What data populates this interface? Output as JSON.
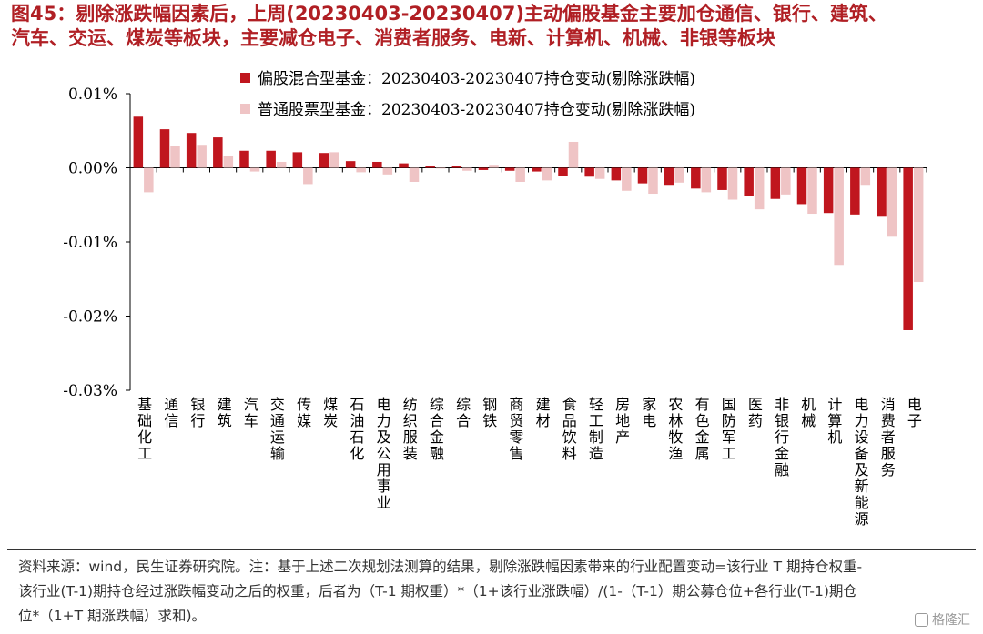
{
  "title": {
    "line1": "图45：剔除涨跌幅因素后，上周(20230403-20230407)主动偏股基金主要加仓通信、银行、建筑、",
    "line2": "汽车、交运、煤炭等板块，主要减仓电子、消费者服务、电新、计算机、机械、非银等板块"
  },
  "footer": {
    "line1": "资料来源：wind，民生证券研究院。注：基于上述二次规划法测算的结果，剔除涨跌幅因素带来的行业配置变动=该行业 T 期持仓权重-",
    "line2": "该行业(T-1)期持仓经过涨跌幅变动之后的权重，后者为（T-1 期权重）*（1+该行业涨跌幅）/(1-（T-1）期公募仓位+各行业(T-1)期仓",
    "line3": "位*（1+T 期涨跌幅）求和)。"
  },
  "watermark": {
    "text": "格隆汇",
    "icon": "glh-logo-icon"
  },
  "chart_data": {
    "type": "bar",
    "title": "",
    "xlabel": "",
    "ylabel": "",
    "ylim": [
      -0.03,
      0.01
    ],
    "yticks": [
      0.01,
      0.0,
      -0.01,
      -0.02,
      -0.03
    ],
    "ytick_labels": [
      "0.01%",
      "0.00%",
      "-0.01%",
      "-0.02%",
      "-0.03%"
    ],
    "grid": false,
    "legend_position": "top",
    "categories": [
      "基础化工",
      "通信",
      "银行",
      "建筑",
      "汽车",
      "交通运输",
      "传媒",
      "煤炭",
      "石油石化",
      "电力及公用事业",
      "纺织服装",
      "综合金融",
      "综合",
      "钢铁",
      "商贸零售",
      "建材",
      "食品饮料",
      "轻工制造",
      "房地产",
      "家电",
      "农林牧渔",
      "有色金属",
      "国防军工",
      "医药",
      "非银行金融",
      "机械",
      "计算机",
      "电力设备及新能源",
      "消费者服务",
      "电子"
    ],
    "series": [
      {
        "name": "偏股混合型基金：20230403-20230407持仓变动(剔除涨跌幅)",
        "color": "#c0161e",
        "values": [
          0.0069,
          0.0052,
          0.0047,
          0.0041,
          0.0023,
          0.0023,
          0.0021,
          0.002,
          0.0009,
          0.0008,
          0.0006,
          0.0003,
          0.0002,
          -0.0003,
          -0.0004,
          -0.0005,
          -0.0011,
          -0.0012,
          -0.0017,
          -0.0021,
          -0.0023,
          -0.0028,
          -0.003,
          -0.0038,
          -0.0042,
          -0.0049,
          -0.0061,
          -0.0063,
          -0.0066,
          -0.0219
        ]
      },
      {
        "name": "普通股票型基金：20230403-20230407持仓变动(剔除涨跌幅)",
        "color": "#efc4c5",
        "values": [
          -0.0033,
          0.0029,
          0.0031,
          0.0016,
          -0.0005,
          0.0008,
          -0.0022,
          0.0021,
          -0.0006,
          -0.0009,
          -0.0019,
          -0.0001,
          -0.0004,
          0.0004,
          -0.0019,
          -0.0017,
          0.0035,
          -0.0015,
          -0.0031,
          -0.0035,
          -0.002,
          -0.0033,
          -0.0043,
          -0.0056,
          -0.0036,
          -0.0062,
          -0.0131,
          -0.0023,
          -0.0093,
          -0.0154
        ]
      }
    ]
  }
}
